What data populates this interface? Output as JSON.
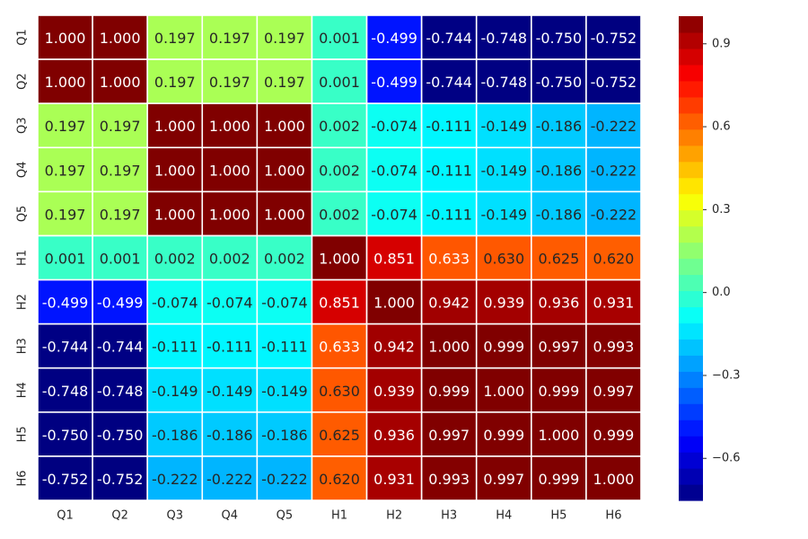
{
  "chart_data": {
    "type": "heatmap",
    "title": "",
    "xlabel": "",
    "ylabel": "",
    "colormap": "jet",
    "color_range": [
      -0.752,
      1.0
    ],
    "annotation_format": "3 decimals",
    "x_labels": [
      "Q1",
      "Q2",
      "Q3",
      "Q4",
      "Q5",
      "H1",
      "H2",
      "H3",
      "H4",
      "H5",
      "H6"
    ],
    "y_labels": [
      "Q1",
      "Q2",
      "Q3",
      "Q4",
      "Q5",
      "H1",
      "H2",
      "H3",
      "H4",
      "H5",
      "H6"
    ],
    "values": [
      [
        1.0,
        1.0,
        0.197,
        0.197,
        0.197,
        0.001,
        -0.499,
        -0.744,
        -0.748,
        -0.75,
        -0.752
      ],
      [
        1.0,
        1.0,
        0.197,
        0.197,
        0.197,
        0.001,
        -0.499,
        -0.744,
        -0.748,
        -0.75,
        -0.752
      ],
      [
        0.197,
        0.197,
        1.0,
        1.0,
        1.0,
        0.002,
        -0.074,
        -0.111,
        -0.149,
        -0.186,
        -0.222
      ],
      [
        0.197,
        0.197,
        1.0,
        1.0,
        1.0,
        0.002,
        -0.074,
        -0.111,
        -0.149,
        -0.186,
        -0.222
      ],
      [
        0.197,
        0.197,
        1.0,
        1.0,
        1.0,
        0.002,
        -0.074,
        -0.111,
        -0.149,
        -0.186,
        -0.222
      ],
      [
        0.001,
        0.001,
        0.002,
        0.002,
        0.002,
        1.0,
        0.851,
        0.633,
        0.63,
        0.625,
        0.62
      ],
      [
        -0.499,
        -0.499,
        -0.074,
        -0.074,
        -0.074,
        0.851,
        1.0,
        0.942,
        0.939,
        0.936,
        0.931
      ],
      [
        -0.744,
        -0.744,
        -0.111,
        -0.111,
        -0.111,
        0.633,
        0.942,
        1.0,
        0.999,
        0.997,
        0.993
      ],
      [
        -0.748,
        -0.748,
        -0.149,
        -0.149,
        -0.149,
        0.63,
        0.939,
        0.999,
        1.0,
        0.999,
        0.997
      ],
      [
        -0.75,
        -0.75,
        -0.186,
        -0.186,
        -0.186,
        0.625,
        0.936,
        0.997,
        0.999,
        1.0,
        0.999
      ],
      [
        -0.752,
        -0.752,
        -0.222,
        -0.222,
        -0.222,
        0.62,
        0.931,
        0.993,
        0.997,
        0.999,
        1.0
      ]
    ],
    "colorbar": {
      "ticks": [
        0.9,
        0.6,
        0.3,
        0.0,
        -0.3,
        -0.6
      ],
      "tick_labels": [
        "0.9",
        "0.6",
        "0.3",
        "0.0",
        "−0.3",
        "−0.6"
      ],
      "levels": 30
    },
    "grid_line_color": "#ffffff",
    "text_color_dark_bg": "#ffffff",
    "text_color_light_bg": "#262626"
  }
}
